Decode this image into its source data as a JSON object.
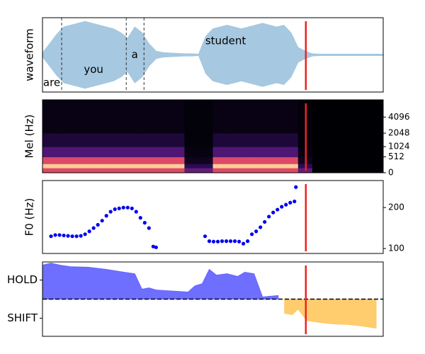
{
  "chart_data": [
    {
      "type": "area",
      "mirror": true,
      "ylabel": "waveform",
      "color": "#a6c8e0",
      "xlim": [
        0,
        480
      ],
      "ylim": [
        -1,
        1
      ],
      "x": [
        0,
        10,
        20,
        30,
        40,
        50,
        60,
        70,
        80,
        90,
        100,
        110,
        120,
        130,
        140,
        150,
        160,
        170,
        180,
        190,
        200,
        210,
        220,
        230,
        240,
        250,
        260,
        270,
        280,
        290,
        300,
        310,
        320,
        330,
        340,
        350,
        360,
        370,
        380,
        390,
        400,
        410,
        420,
        430,
        440,
        450,
        460,
        470,
        480
      ],
      "series": [
        {
          "values": [
            0.05,
            0.3,
            0.55,
            0.75,
            0.8,
            0.85,
            0.9,
            0.85,
            0.8,
            0.75,
            0.7,
            0.6,
            0.45,
            0.75,
            0.6,
            0.3,
            0.1,
            0.06,
            0.05,
            0.04,
            0.03,
            0.03,
            0.02,
            0.5,
            0.7,
            0.75,
            0.8,
            0.75,
            0.7,
            0.75,
            0.8,
            0.85,
            0.8,
            0.75,
            0.8,
            0.6,
            0.2,
            0.1,
            0.03,
            0.02,
            0.02,
            0.02,
            0.02,
            0.02,
            0.02,
            0.02,
            0.02,
            0.02,
            0.02
          ],
          "color": "#a6c8e0"
        }
      ],
      "dashed_lines": [
        27,
        118,
        143
      ],
      "annotations": [
        {
          "text": "are",
          "x": 13,
          "y": -0.75
        },
        {
          "text": "you",
          "x": 72,
          "y": -0.4
        },
        {
          "text": "a",
          "x": 130,
          "y": 0
        },
        {
          "text": "student",
          "x": 258,
          "y": 0.37
        }
      ],
      "vline": 371,
      "vline_color": "#ee2222"
    },
    {
      "type": "heatmap",
      "ylabel": "Mel (Hz)",
      "yscale": "mel",
      "ytick_side": "right",
      "xlim": [
        0,
        480
      ],
      "ylim": [
        0,
        8000
      ],
      "yticks": [
        0,
        512,
        1024,
        2048,
        4096
      ],
      "x_bins": [
        0,
        20,
        40,
        60,
        80,
        100,
        120,
        140,
        160,
        180,
        200,
        220,
        240,
        260,
        280,
        300,
        320,
        340,
        360,
        380,
        400,
        420,
        440,
        460,
        480
      ],
      "y_bins": [
        0,
        128,
        256,
        512,
        1024,
        2048,
        8000
      ],
      "z": [
        [
          0.6,
          0.6,
          0.6,
          0.6,
          0.6,
          0.6,
          0.6,
          0.6,
          0.6,
          0.6,
          0.3,
          0.3,
          0.6,
          0.6,
          0.6,
          0.6,
          0.6,
          0.6,
          0.3,
          0,
          0,
          0,
          0,
          0
        ],
        [
          0.9,
          0.9,
          0.9,
          0.9,
          0.9,
          0.9,
          0.9,
          0.9,
          0.9,
          0.9,
          0.15,
          0.15,
          0.9,
          0.9,
          0.9,
          0.9,
          0.9,
          0.9,
          0.15,
          0,
          0,
          0,
          0,
          0
        ],
        [
          0.6,
          0.6,
          0.6,
          0.6,
          0.6,
          0.6,
          0.6,
          0.6,
          0.6,
          0.6,
          0.05,
          0.05,
          0.6,
          0.6,
          0.6,
          0.6,
          0.6,
          0.6,
          0.05,
          0,
          0,
          0,
          0,
          0
        ],
        [
          0.25,
          0.25,
          0.25,
          0.25,
          0.25,
          0.25,
          0.25,
          0.25,
          0.25,
          0.25,
          0.02,
          0.02,
          0.25,
          0.25,
          0.25,
          0.25,
          0.25,
          0.25,
          0.02,
          0,
          0,
          0,
          0,
          0
        ],
        [
          0.1,
          0.1,
          0.1,
          0.1,
          0.1,
          0.1,
          0.1,
          0.1,
          0.1,
          0.1,
          0.01,
          0.01,
          0.1,
          0.1,
          0.1,
          0.1,
          0.1,
          0.1,
          0.01,
          0,
          0,
          0,
          0,
          0
        ],
        [
          0.03,
          0.03,
          0.03,
          0.03,
          0.03,
          0.03,
          0.03,
          0.03,
          0.03,
          0.03,
          0.01,
          0.01,
          0.03,
          0.03,
          0.03,
          0.03,
          0.03,
          0.03,
          0.01,
          0,
          0,
          0,
          0,
          0
        ]
      ],
      "vline": 371,
      "vline_color": "#ee2222"
    },
    {
      "type": "scatter",
      "ylabel": "F0 (Hz)",
      "ytick_side": "right",
      "color": "#0000ee",
      "xlim": [
        0,
        480
      ],
      "ylim": [
        88,
        266
      ],
      "yticks": [
        100,
        200
      ],
      "x": [
        12,
        18,
        24,
        30,
        36,
        42,
        48,
        54,
        60,
        66,
        72,
        78,
        84,
        90,
        96,
        102,
        108,
        114,
        120,
        126,
        132,
        138,
        144,
        150,
        156,
        160,
        229,
        235,
        241,
        247,
        253,
        259,
        265,
        271,
        277,
        283,
        289,
        295,
        301,
        307,
        313,
        319,
        325,
        331,
        337,
        343,
        349,
        355,
        357
      ],
      "values": [
        130,
        133,
        133,
        132,
        131,
        130,
        130,
        131,
        135,
        142,
        150,
        158,
        168,
        180,
        190,
        196,
        198,
        200,
        200,
        198,
        190,
        175,
        163,
        150,
        105,
        103,
        130,
        118,
        117,
        117,
        118,
        118,
        118,
        118,
        117,
        112,
        118,
        135,
        142,
        152,
        165,
        178,
        188,
        195,
        202,
        207,
        212,
        215,
        250
      ],
      "vline": 371,
      "vline_color": "#ee2222"
    },
    {
      "type": "area",
      "ytick_side": "left",
      "xlim": [
        0,
        480
      ],
      "ylim": [
        -1.95,
        1.95
      ],
      "yticks": [
        {
          "value": 1,
          "label": "HOLD"
        },
        {
          "value": -1,
          "label": "SHIFT"
        }
      ],
      "series": [
        {
          "color": "#6666ff",
          "x": [
            0,
            12,
            25,
            40,
            65,
            90,
            110,
            130,
            140,
            150,
            160,
            175,
            190,
            205,
            215,
            225,
            235,
            245,
            260,
            275,
            285,
            298,
            310,
            332
          ],
          "values": [
            1.78,
            1.89,
            1.78,
            1.7,
            1.67,
            1.56,
            1.44,
            1.33,
            0.52,
            0.59,
            0.48,
            0.44,
            0.41,
            0.37,
            0.7,
            0.81,
            1.56,
            1.26,
            1.33,
            1.19,
            1.41,
            1.33,
            0.11,
            0.19
          ]
        },
        {
          "color": "#ffc966",
          "x": [
            341,
            352,
            360,
            372,
            390,
            410,
            430,
            450,
            470
          ],
          "values": [
            -0.74,
            -0.81,
            -0.52,
            -1.11,
            -1.22,
            -1.3,
            -1.33,
            -1.41,
            -1.52
          ]
        }
      ],
      "hline": 0,
      "vline": 371,
      "vline_color": "#ee2222"
    }
  ]
}
